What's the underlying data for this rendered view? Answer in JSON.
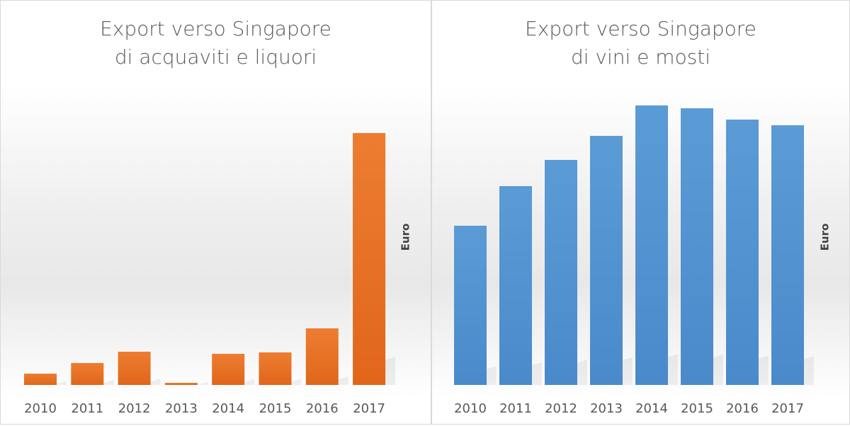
{
  "chart_data": [
    {
      "type": "bar",
      "title": "Export verso Singapore\ndi acquaviti e liquori",
      "title_lines": [
        "Export verso Singapore",
        "di acquaviti e liquori"
      ],
      "categories": [
        "2010",
        "2011",
        "2012",
        "2013",
        "2014",
        "2015",
        "2016",
        "2017"
      ],
      "values": [
        16,
        31,
        47,
        3,
        44,
        46,
        80,
        356
      ],
      "value_note": "relative heights, no axis scale printed",
      "xlabel": "",
      "ylabel": "Euro",
      "ylim": [
        0,
        400
      ],
      "grid": false,
      "color": "#ED7D31"
    },
    {
      "type": "bar",
      "title": "Export verso Singapore\ndi vini e mosti",
      "title_lines": [
        "Export verso Singapore",
        "di vini e mosti"
      ],
      "categories": [
        "2010",
        "2011",
        "2012",
        "2013",
        "2014",
        "2015",
        "2016",
        "2017"
      ],
      "values": [
        225,
        281,
        318,
        352,
        395,
        391,
        375,
        367
      ],
      "xlabel": "",
      "ylabel": "Euro",
      "ylim": [
        0,
        400
      ],
      "grid": false,
      "color": "#5B9BD5"
    }
  ]
}
